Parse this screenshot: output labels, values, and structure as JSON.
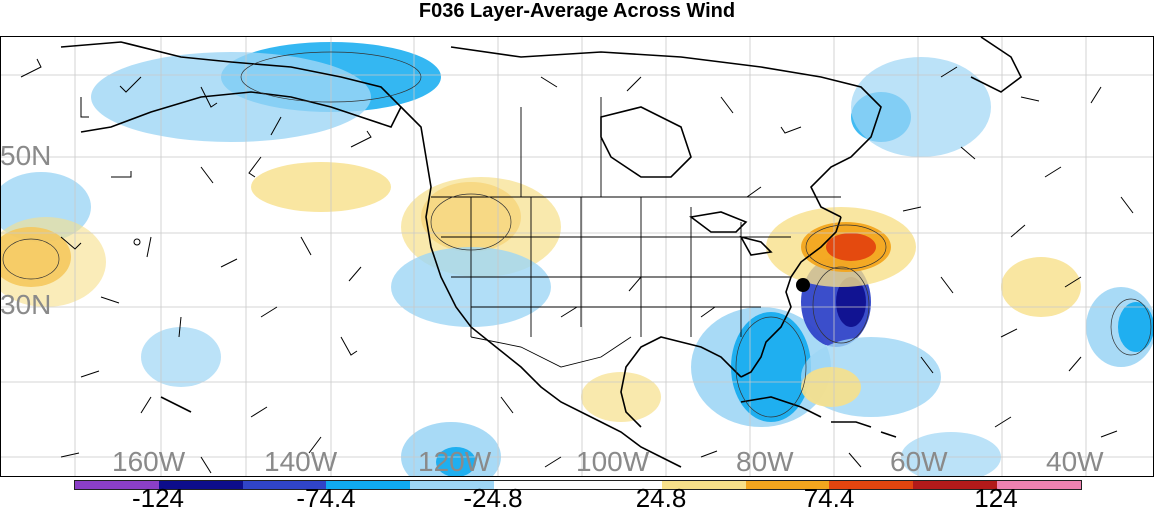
{
  "title": "F036 Layer-Average Across Wind",
  "lon_labels": [
    "160W",
    "140W",
    "120W",
    "100W",
    "80W",
    "60W",
    "40W"
  ],
  "lat_labels": [
    "50N",
    "30N"
  ],
  "colorbar": {
    "colors": [
      "#8b3fc7",
      "#0d0d8c",
      "#3044c8",
      "#10aaf0",
      "#9ed6f5",
      "#ffffff",
      "#ffffff",
      "#f7e08a",
      "#f3a51e",
      "#e3450f",
      "#b21a1a",
      "#ee82b0"
    ],
    "tick_labels": [
      "-124",
      "-74.4",
      "-24.8",
      "24.8",
      "74.4",
      "124"
    ]
  },
  "storm_marker": "filled-circle"
}
